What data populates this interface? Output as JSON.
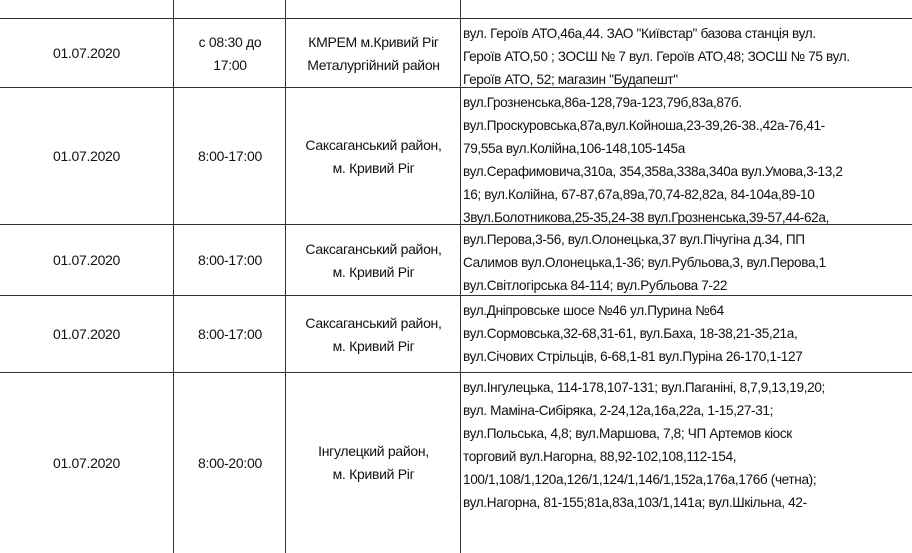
{
  "rows": [
    {
      "date": "",
      "time": [
        "17:00"
      ],
      "district": [
        "Саксаганський район"
      ],
      "addresses": []
    },
    {
      "date": "01.07.2020",
      "time": [
        "с 08:30 до",
        "17:00"
      ],
      "district": [
        "КМРЕМ м.Кривий Ріг",
        "Металургійний район"
      ],
      "addresses": [
        " вул. Героїв АТО,46а,44. ЗАО \"Київстар\" базова станція вул.",
        "Героїв АТО,50 ; ЗОСШ № 7 вул. Героїв АТО,48;  ЗОСШ № 75 вул.",
        "Героїв АТО, 52; магазин \"Будапешт\""
      ]
    },
    {
      "date": "01.07.2020",
      "time": [
        "8:00-17:00"
      ],
      "district": [
        "Саксаганський район,",
        "м. Кривий Ріг"
      ],
      "addresses": [
        "вул.Грозненська,86а-128,79а-123,79б,83а,87б.",
        "вул.Проскуровська,87а,вул.Койноша,23-39,26-38.,42а-76,41-",
        "79,55а   вул.Колійна,106-148,105-145а",
        "вул.Серафимовича,310а, 354,358а,338а,340а вул.Умова,3-13,2",
        "16; вул.Колійна, 67-87,67а,89а,70,74-82,82а, 84-104а,89-10",
        "3вул.Болотникова,25-35,24-38  вул.Грозненська,39-57,44-62а,"
      ]
    },
    {
      "date": "01.07.2020",
      "time": [
        "8:00-17:00"
      ],
      "district": [
        "Саксаганський район,",
        "м. Кривий Ріг"
      ],
      "addresses": [
        "вул.Перова,3-56, вул.Олонецька,37  вул.Пічугіна д.34,  ПП",
        "Салимов  вул.Олонецька,1-36; вул.Рубльова,3, вул.Перова,1",
        "вул.Світлогірська 84-114; вул.Рубльова 7-22"
      ]
    },
    {
      "date": "01.07.2020",
      "time": [
        "8:00-17:00"
      ],
      "district": [
        "Саксаганський район,",
        "м. Кривий Ріг"
      ],
      "addresses": [
        " вул.Дніпровське шосе №46  ул.Пурина №64",
        "вул.Сормовська,32-68,31-61,  вул.Баха, 18-38,21-35,21а,",
        "вул.Січових Стрільців,  6-68,1-81  вул.Пуріна 26-170,1-127"
      ]
    },
    {
      "date": "01.07.2020",
      "time": [
        "8:00-20:00"
      ],
      "district": [
        "Інгулецкий  район,",
        "м. Кривий Ріг"
      ],
      "addresses": [
        "вул.Інгулецька, 114-178,107-131; вул.Паганіні, 8,7,9,13,19,20;",
        "вул. Маміна-Сибіряка, 2-24,12а,16а,22а, 1-15,27-31;",
        "вул.Польська, 4,8; вул.Маршова, 7,8; ЧП Артемов кіоск",
        "торговий  вул.Нагорна, 88,92-102,108,112-154,",
        "100/1,108/1,120а,126/1,124/1,146/1,152а,176а,176б (четна);",
        "вул.Нагорна, 81-155;81а,83а,103/1,141а;  вул.Шкільна, 42-"
      ]
    }
  ]
}
